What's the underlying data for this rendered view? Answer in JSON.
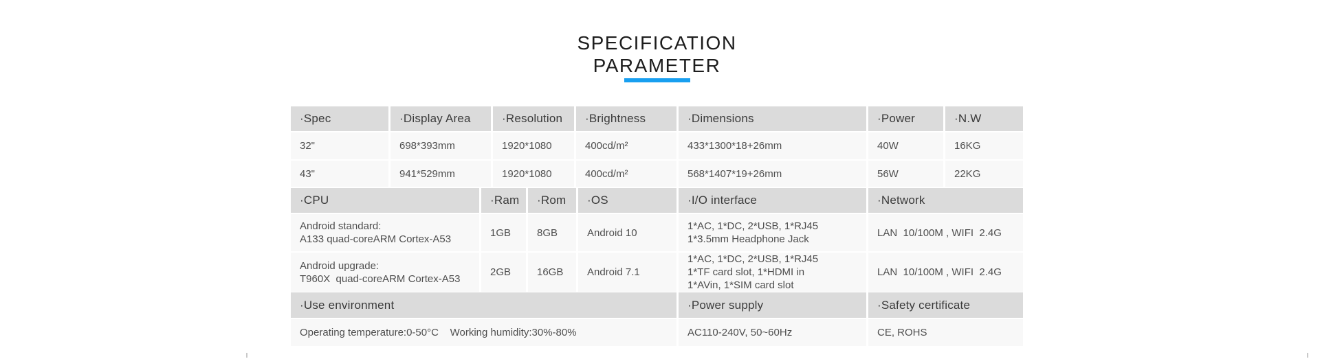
{
  "header": {
    "title_line1": "SPECIFICATION",
    "title_line2": "PARAMETER",
    "accent_color": "#189ff0"
  },
  "table": {
    "display": {
      "headers": [
        "·Spec",
        "·Display Area",
        "·Resolution",
        "·Brightness",
        "·Dimensions",
        "·Power",
        "·N.W"
      ],
      "rows": [
        [
          "32\"",
          "698*393mm",
          "1920*1080",
          "400cd/m²",
          "433*1300*18+26mm",
          "40W",
          "16KG"
        ],
        [
          "43\"",
          "941*529mm",
          "1920*1080",
          "400cd/m²",
          "568*1407*19+26mm",
          "56W",
          "22KG"
        ]
      ]
    },
    "system": {
      "headers": [
        "·CPU",
        "·Ram",
        "·Rom",
        "·OS",
        "·I/O interface",
        "·Network"
      ],
      "rows": [
        [
          "Android standard:\nA133 quad-coreARM Cortex-A53",
          "1GB",
          "8GB",
          "Android 10",
          "1*AC, 1*DC, 2*USB, 1*RJ45\n1*3.5mm Headphone Jack",
          "LAN  10/100M , WIFI  2.4G"
        ],
        [
          "Android upgrade:\nT960X  quad-coreARM Cortex-A53",
          "2GB",
          "16GB",
          "Android 7.1",
          "1*AC, 1*DC, 2*USB, 1*RJ45\n1*TF card slot, 1*HDMI in\n1*AVin, 1*SIM card slot",
          "LAN  10/100M , WIFI  2.4G"
        ]
      ]
    },
    "environment": {
      "headers": [
        "·Use environment",
        "·Power supply",
        "·Safety certificate"
      ],
      "rows": [
        [
          "Operating temperature:0-50°C    Working humidity:30%-80%",
          "AC110-240V, 50~60Hz",
          "CE, ROHS"
        ]
      ]
    }
  }
}
